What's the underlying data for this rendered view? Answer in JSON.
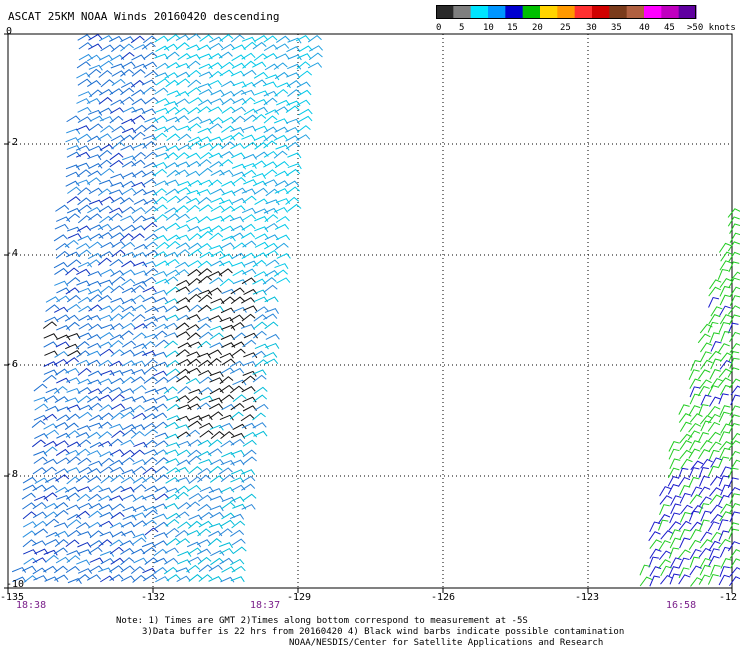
{
  "title": "ASCAT 25KM NOAA Winds 20160420 descending",
  "legend": {
    "labels": [
      "0",
      "5",
      "10",
      "15",
      "20",
      "25",
      "30",
      "35",
      "40",
      "45",
      ">50 knots"
    ],
    "colors": [
      "#2a2a2a",
      "#7f7f7f",
      "#00e5ff",
      "#0096ff",
      "#0000d0",
      "#00c000",
      "#ffd400",
      "#ff9900",
      "#ff3030",
      "#d00000",
      "#7a3b1b",
      "#b06040",
      "#ff00ff",
      "#c000c0",
      "#6000a0"
    ]
  },
  "map": {
    "lat_labels": [
      "0",
      "-2",
      "-4",
      "-6",
      "-8",
      "-10"
    ],
    "lon_labels": [
      "-135",
      "-132",
      "-129",
      "-126",
      "-123",
      "-12"
    ],
    "time_labels": [
      "18:38",
      "18:37",
      "16:58"
    ]
  },
  "notes": {
    "line1": "Note: 1) Times are GMT 2)Times along bottom correspond to measurement at -5S",
    "line2": "3)Data buffer is 22 hrs from 20160420 4) Black wind barbs indicate possible contamination",
    "line3": "NOAA/NESDIS/Center for Satellite Applications and Research"
  }
}
